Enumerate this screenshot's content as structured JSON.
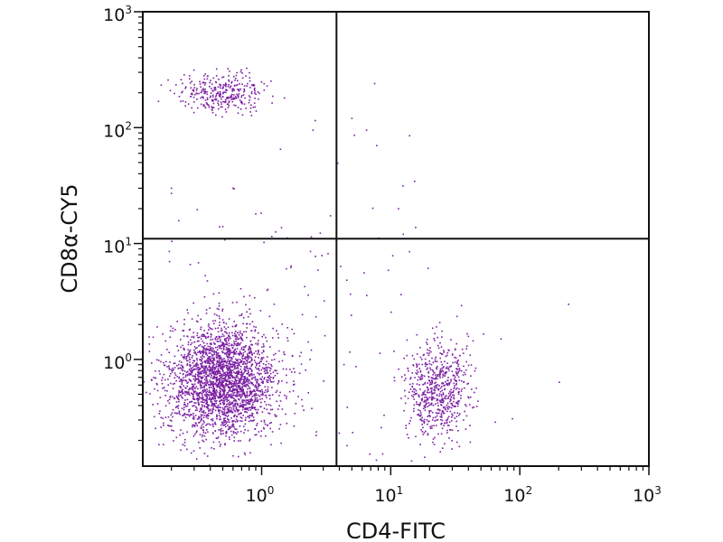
{
  "chart_data": {
    "type": "scatter",
    "title": "",
    "xlabel": "CD4-FITC",
    "ylabel": "CD8α-CY5",
    "xscale": "log",
    "yscale": "log",
    "xlim": [
      0.12,
      1000
    ],
    "ylim": [
      0.12,
      1000
    ],
    "grid": false,
    "legend": "none",
    "gates": {
      "x": 3.8,
      "y": 11
    },
    "x_ticks": [
      {
        "base": "10",
        "exp": "0",
        "value": 1
      },
      {
        "base": "10",
        "exp": "1",
        "value": 10
      },
      {
        "base": "10",
        "exp": "2",
        "value": 100
      },
      {
        "base": "10",
        "exp": "3",
        "value": 1000
      }
    ],
    "y_ticks": [
      {
        "base": "10",
        "exp": "0",
        "value": 1
      },
      {
        "base": "10",
        "exp": "1",
        "value": 10
      },
      {
        "base": "10",
        "exp": "2",
        "value": 100
      },
      {
        "base": "10",
        "exp": "3",
        "value": 1000
      }
    ],
    "point_color": "#7b1fa2",
    "point_seed": 20240611,
    "populations": [
      {
        "name": "CD4-CD8- (lower-left)",
        "count": 2600,
        "x_center": 0.5,
        "y_center": 0.65,
        "x_spread_decades": 0.21,
        "y_spread_decades": 0.24
      },
      {
        "name": "CD4+CD8- (lower-right)",
        "count": 650,
        "x_center": 23,
        "y_center": 0.55,
        "x_spread_decades": 0.12,
        "y_spread_decades": 0.21
      },
      {
        "name": "CD4-CD8+ (upper-left)",
        "count": 330,
        "x_center": 0.5,
        "y_center": 200,
        "x_spread_decades": 0.17,
        "y_spread_decades": 0.08
      },
      {
        "name": "Scattered events",
        "count": 140,
        "x_center": 1.8,
        "y_center": 2.5,
        "x_spread_decades": 0.8,
        "y_spread_decades": 0.65
      }
    ],
    "outlier_points": [
      {
        "x": 0.2,
        "y": 27
      },
      {
        "x": 0.2,
        "y": 30
      },
      {
        "x": 0.5,
        "y": 14
      },
      {
        "x": 0.6,
        "y": 30
      },
      {
        "x": 1.2,
        "y": 11.5
      },
      {
        "x": 0.9,
        "y": 18
      },
      {
        "x": 5,
        "y": 120
      },
      {
        "x": 7.5,
        "y": 240
      },
      {
        "x": 7.8,
        "y": 70
      },
      {
        "x": 14,
        "y": 85
      },
      {
        "x": 11.5,
        "y": 20
      },
      {
        "x": 12.5,
        "y": 12
      },
      {
        "x": 6.5,
        "y": 95
      },
      {
        "x": 2.5,
        "y": 95
      },
      {
        "x": 2.6,
        "y": 115
      },
      {
        "x": 1.5,
        "y": 180
      },
      {
        "x": 14,
        "y": 8.5
      },
      {
        "x": 1.4,
        "y": 65
      }
    ]
  }
}
